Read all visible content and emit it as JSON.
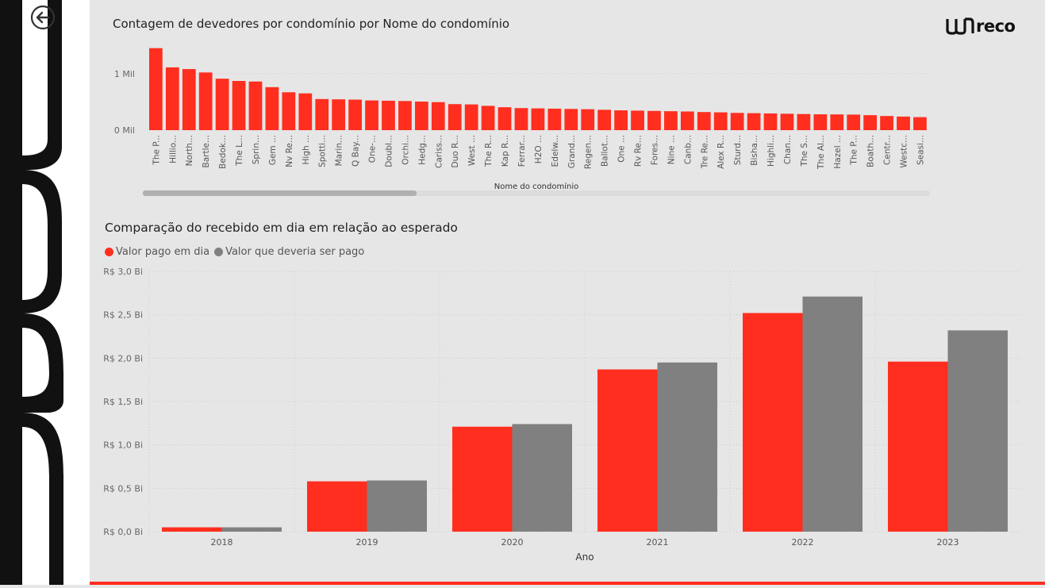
{
  "header": {
    "logo_text": "reco",
    "back_icon": "arrow-left-circle-icon"
  },
  "colors": {
    "accent_red": "#ff2e1f",
    "series_gray": "#808080",
    "background": "#e6e6e6"
  },
  "chart_data": [
    {
      "type": "bar",
      "title": "Contagem de devedores por condomínio por Nome do condomínio",
      "xlabel": "Nome do condomínio",
      "ylabel": "",
      "y_ticks": [
        "0 Mil",
        "1 Mil"
      ],
      "y_tick_values": [
        0,
        1000
      ],
      "ylim": [
        0,
        1600
      ],
      "grid": true,
      "scrollbar": true,
      "color": "#ff2e1f",
      "categories": [
        "The P...",
        "Hillio...",
        "North...",
        "Bartle...",
        "Bedok...",
        "The L...",
        "Sprin...",
        "Gem ...",
        "Nv Re...",
        "High ...",
        "Spotti...",
        "Marin...",
        "Q Bay...",
        "One-...",
        "Doubl...",
        "Orchi...",
        "Hedg...",
        "Cariss...",
        "Duo R...",
        "West ...",
        "The R...",
        "Kap R...",
        "Ferrar...",
        "H2O ...",
        "Edelw...",
        "Grand...",
        "Regen...",
        "Ballot...",
        "One ...",
        "Rv Re...",
        "Fores...",
        "Nine ...",
        "Canb...",
        "Tre Re...",
        "Alex R...",
        "Sturd...",
        "Bisha...",
        "Highli...",
        "Chan...",
        "The S...",
        "The Al...",
        "Hazel ...",
        "The P...",
        "Boath...",
        "Centr...",
        "Westc...",
        "Seasi..."
      ],
      "values": [
        1450,
        1110,
        1080,
        1020,
        910,
        870,
        860,
        760,
        670,
        650,
        550,
        545,
        540,
        525,
        520,
        515,
        505,
        495,
        460,
        455,
        430,
        405,
        390,
        385,
        380,
        375,
        370,
        360,
        350,
        345,
        340,
        335,
        330,
        320,
        315,
        305,
        300,
        295,
        290,
        285,
        280,
        278,
        275,
        265,
        250,
        240,
        230
      ]
    },
    {
      "type": "bar",
      "title": "Comparação do recebido em dia em relação ao esperado",
      "xlabel": "Ano",
      "ylabel": "",
      "legend_placement": "top-left",
      "grid": true,
      "y_ticks": [
        "R$ 0,0 Bi",
        "R$ 0,5 Bi",
        "R$ 1,0 Bi",
        "R$ 1,5 Bi",
        "R$ 2,0 Bi",
        "R$ 2,5 Bi",
        "R$ 3,0 Bi"
      ],
      "y_tick_values": [
        0,
        0.5,
        1.0,
        1.5,
        2.0,
        2.5,
        3.0
      ],
      "ylim": [
        0,
        3.0
      ],
      "categories": [
        "2018",
        "2019",
        "2020",
        "2021",
        "2022",
        "2023"
      ],
      "series": [
        {
          "name": "Valor pago em dia",
          "color": "#ff2e1f",
          "values": [
            0.05,
            0.58,
            1.21,
            1.87,
            2.52,
            1.96
          ]
        },
        {
          "name": "Valor que deveria ser pago",
          "color": "#808080",
          "values": [
            0.05,
            0.59,
            1.24,
            1.95,
            2.71,
            2.32
          ]
        }
      ]
    }
  ]
}
